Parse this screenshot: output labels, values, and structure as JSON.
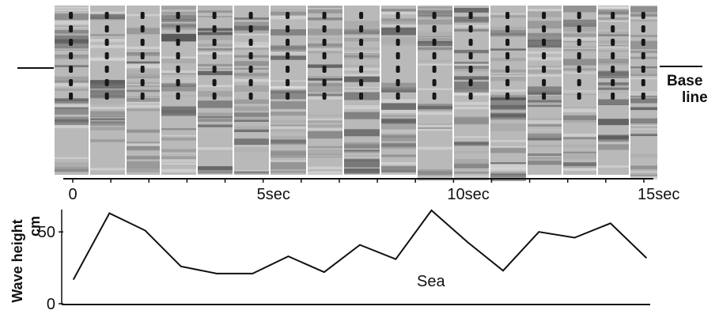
{
  "photo_strip": {
    "baseline_label_line1": "Base",
    "baseline_label_line2": "line",
    "time_ticks": [
      {
        "t": 0,
        "label": "0"
      },
      {
        "t": 5,
        "label": "5sec"
      },
      {
        "t": 10,
        "label": "10sec"
      },
      {
        "t": 15,
        "label": "15sec"
      }
    ]
  },
  "chart_data": {
    "type": "line",
    "title": "",
    "xlabel": "",
    "ylabel": "Wave height",
    "yunit": "cm",
    "xlim": [
      0,
      15.5
    ],
    "ylim": [
      0,
      65
    ],
    "yticks": [
      0,
      50
    ],
    "grid": false,
    "series": [
      {
        "name": "Sea",
        "x": [
          0,
          1,
          2,
          3,
          4,
          5,
          6,
          7,
          8,
          9,
          10,
          11,
          12,
          13,
          14,
          15,
          16
        ],
        "y": [
          17,
          63,
          51,
          26,
          21,
          21,
          33,
          22,
          41,
          31,
          65,
          43,
          23,
          50,
          46,
          56,
          32
        ]
      }
    ]
  }
}
